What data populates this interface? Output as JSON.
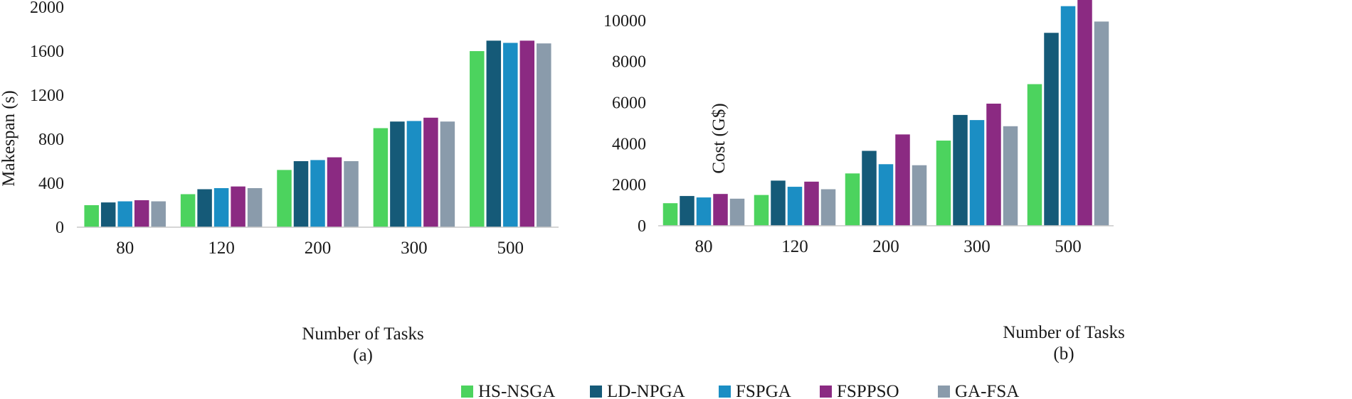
{
  "legend": [
    "HS-NSGA",
    "LD-NPGA",
    "FSPGA",
    "FSPPSO",
    "GA-FSA"
  ],
  "colors": [
    "#4cd35e",
    "#155a78",
    "#1b8ec4",
    "#8b2a82",
    "#8a9bab"
  ],
  "chart_data": [
    {
      "type": "bar",
      "panel_label": "(a)",
      "title": "",
      "xlabel": "Number of Tasks",
      "ylabel": "Makespan (s)",
      "ylim": [
        0,
        2000
      ],
      "yticks": [
        0,
        400,
        800,
        1200,
        1600,
        2000
      ],
      "grid": false,
      "categories": [
        "80",
        "120",
        "200",
        "300",
        "500"
      ],
      "series": [
        {
          "name": "HS-NSGA",
          "values": [
            200,
            300,
            520,
            900,
            1600
          ]
        },
        {
          "name": "LD-NPGA",
          "values": [
            225,
            345,
            600,
            960,
            1695
          ]
        },
        {
          "name": "FSPGA",
          "values": [
            235,
            355,
            610,
            965,
            1675
          ]
        },
        {
          "name": "FSPPSO",
          "values": [
            245,
            370,
            635,
            995,
            1695
          ]
        },
        {
          "name": "GA-FSA",
          "values": [
            235,
            355,
            600,
            960,
            1670
          ]
        }
      ]
    },
    {
      "type": "bar",
      "panel_label": "(b)",
      "title": "",
      "xlabel": "Number of Tasks",
      "ylabel": "Cost (G$)",
      "ylim": [
        0,
        11000
      ],
      "yticks": [
        0,
        2000,
        4000,
        6000,
        8000,
        10000
      ],
      "grid": false,
      "categories": [
        "80",
        "120",
        "200",
        "300",
        "500"
      ],
      "series": [
        {
          "name": "HS-NSGA",
          "values": [
            1100,
            1500,
            2550,
            4150,
            6900
          ]
        },
        {
          "name": "LD-NPGA",
          "values": [
            1450,
            2200,
            3650,
            5400,
            9400
          ]
        },
        {
          "name": "FSPGA",
          "values": [
            1380,
            1900,
            3000,
            5150,
            10700
          ]
        },
        {
          "name": "FSPPSO",
          "values": [
            1550,
            2150,
            4450,
            5950,
            11050
          ]
        },
        {
          "name": "GA-FSA",
          "values": [
            1320,
            1780,
            2950,
            4850,
            9950
          ]
        }
      ]
    }
  ]
}
